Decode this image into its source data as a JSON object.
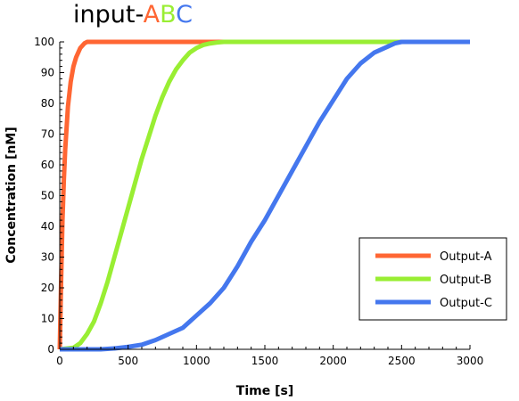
{
  "title": {
    "prefix": "input-",
    "letters": [
      {
        "text": "A",
        "color": "#ff6633"
      },
      {
        "text": "B",
        "color": "#99ee33"
      },
      {
        "text": "C",
        "color": "#4477ee"
      }
    ]
  },
  "chart_data": {
    "type": "line",
    "xlabel": "Time [s]",
    "ylabel": "Concentration [nM]",
    "xlim": [
      0,
      3000
    ],
    "ylim": [
      0,
      100
    ],
    "xticks": [
      0,
      500,
      1000,
      1500,
      2000,
      2500,
      3000
    ],
    "yticks": [
      0,
      10,
      20,
      30,
      40,
      50,
      60,
      70,
      80,
      90,
      100
    ],
    "grid": false,
    "legend_position": "bottom-right",
    "series": [
      {
        "name": "Output-A",
        "color": "#ff6633",
        "x": [
          0,
          10,
          20,
          30,
          40,
          60,
          80,
          100,
          120,
          150,
          180,
          200,
          250,
          400,
          800,
          1200,
          2000,
          2500
        ],
        "y": [
          0,
          22,
          42,
          55,
          65,
          79,
          87,
          92,
          95,
          98,
          99.5,
          100,
          100,
          100,
          100,
          100,
          100,
          100
        ]
      },
      {
        "name": "Output-B",
        "color": "#99ee33",
        "x": [
          0,
          100,
          150,
          200,
          250,
          300,
          350,
          400,
          450,
          500,
          550,
          600,
          650,
          700,
          750,
          800,
          850,
          900,
          950,
          1000,
          1050,
          1100,
          1150,
          1200,
          1300,
          1500,
          2000,
          2500
        ],
        "y": [
          0,
          0.5,
          2,
          5,
          9,
          15,
          22,
          30,
          38,
          46,
          54,
          62,
          69,
          76,
          82,
          87,
          91,
          94,
          96.5,
          98,
          99,
          99.5,
          99.8,
          100,
          100,
          100,
          100,
          100
        ]
      },
      {
        "name": "Output-C",
        "color": "#4477ee",
        "x": [
          0,
          300,
          400,
          500,
          600,
          700,
          800,
          900,
          1000,
          1100,
          1200,
          1300,
          1400,
          1500,
          1600,
          1700,
          1800,
          1900,
          2000,
          2100,
          2200,
          2300,
          2400,
          2450,
          2500,
          2600,
          2800,
          3000
        ],
        "y": [
          0,
          0,
          0.3,
          0.8,
          1.5,
          3,
          5,
          7,
          11,
          15,
          20,
          27,
          35,
          42,
          50,
          58,
          66,
          74,
          81,
          88,
          93,
          96.5,
          98.5,
          99.5,
          100,
          100,
          100,
          100
        ]
      }
    ]
  }
}
